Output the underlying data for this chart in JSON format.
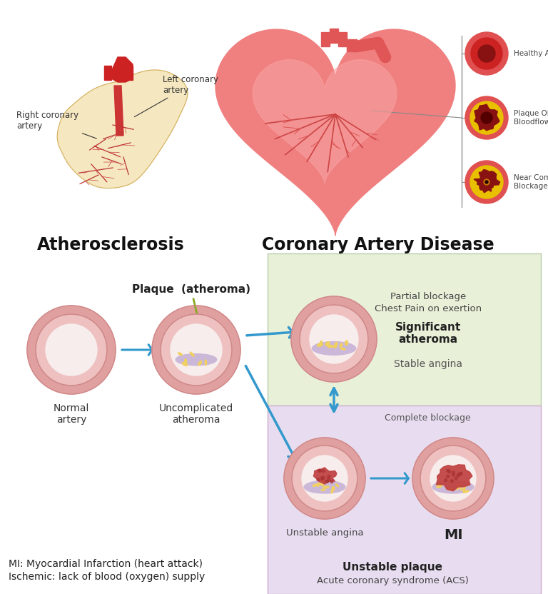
{
  "bg_color": "#ffffff",
  "section_left_title": "Atherosclerosis",
  "section_right_title": "Coronary Artery Disease",
  "plaque_label": "Plaque  (atheroma)",
  "normal_artery_label": "Normal\nartery",
  "uncomplicated_label": "Uncomplicated\natheroma",
  "green_box_color": "#e8f0d8",
  "purple_box_color": "#e8ddf0",
  "partial_blockage_text1": "Partial blockage",
  "partial_blockage_text2": "Chest Pain on exertion",
  "significant_text": "Significant\natheroma",
  "stable_angina_text": "Stable angina",
  "complete_blockage_text": "Complete blockage",
  "unstable_angina_label": "Unstable angina",
  "mi_label": "MI",
  "unstable_plaque_bold": "Unstable plaque",
  "unstable_plaque_sub": "Acute coronary syndrome (ACS)",
  "mi_note1": "MI: Myocardial Infarction (heart attack)",
  "mi_note2": "Ischemic: lack of blood (oxygen) supply",
  "artery_outer_color": "#e0a0a0",
  "artery_mid_color": "#eec0c0",
  "artery_inner_color": "#f8eded",
  "artery_dark_ring": "#d08888",
  "plaque_color": "#cbb8d8",
  "crystal_color": "#f0d060",
  "thrombus_color": "#c04040",
  "arrow_color": "#3399cc",
  "green_arrow_color": "#88aa22",
  "healthy_outer": "#e05050",
  "healthy_mid": "#cc2222",
  "healthy_inner": "#881111",
  "plaque_obs_yellow": "#e8c000",
  "near_dark": "#220000"
}
